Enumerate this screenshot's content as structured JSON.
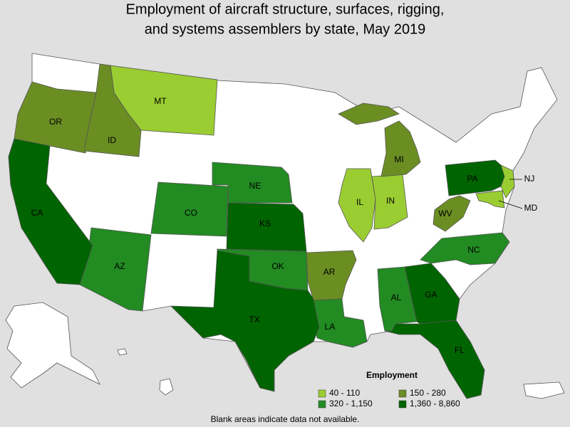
{
  "title": [
    "Employment of aircraft structure, surfaces, rigging,",
    "and systems assemblers by state, May 2019"
  ],
  "legend": {
    "title": "Employment",
    "items": [
      {
        "label": "40 - 110",
        "color": "#9acd32",
        "states": [
          "MT",
          "IL",
          "IN",
          "NJ",
          "MD"
        ]
      },
      {
        "label": "150 - 280",
        "color": "#6b8e23",
        "states": [
          "OR",
          "ID",
          "MI",
          "AR",
          "WV"
        ]
      },
      {
        "label": "320 - 1,150",
        "color": "#228b22",
        "states": [
          "NE",
          "CO",
          "AZ",
          "OK",
          "NC",
          "AL",
          "LA"
        ]
      },
      {
        "label": "1,360 - 8,860",
        "color": "#006400",
        "states": [
          "CA",
          "KS",
          "TX",
          "GA",
          "FL",
          "PA"
        ]
      }
    ]
  },
  "note": "Blank areas indicate data not available."
}
